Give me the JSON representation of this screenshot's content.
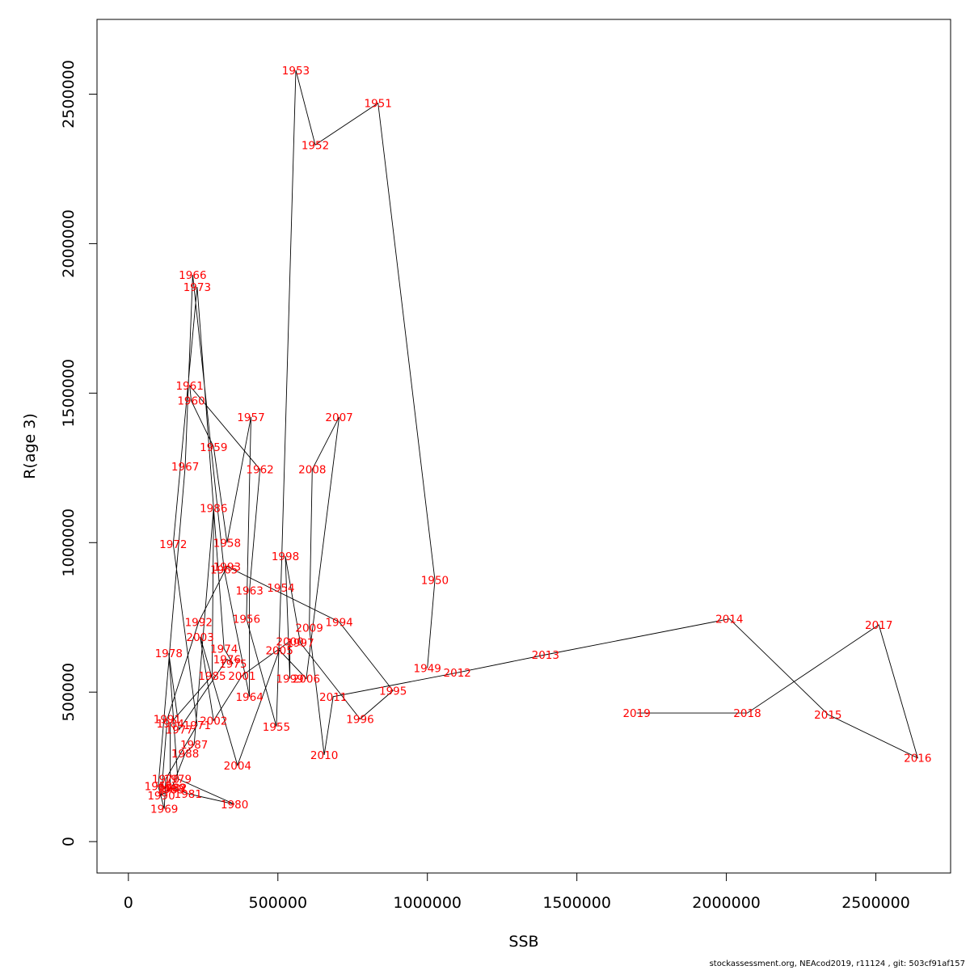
{
  "chart_data": {
    "type": "line",
    "title": "",
    "xlabel": "SSB",
    "ylabel": "R(age 3)",
    "xlim": [
      -105000,
      2750000
    ],
    "ylim": [
      -105000,
      2750000
    ],
    "x_ticks": [
      0,
      500000,
      1000000,
      1500000,
      2000000,
      2500000
    ],
    "x_tick_labels": [
      "0",
      "500000",
      "1000000",
      "1500000",
      "2000000",
      "2500000"
    ],
    "y_ticks": [
      0,
      500000,
      1000000,
      1500000,
      2000000,
      2500000
    ],
    "y_tick_labels": [
      "0",
      "500000",
      "1000000",
      "1500000",
      "2000000",
      "2500000"
    ],
    "line_color": "#000000",
    "label_color": "#ff0000",
    "series": [
      {
        "points": [
          {
            "year": "1949",
            "ssb": 1000000,
            "r": 580000
          },
          {
            "year": "1950",
            "ssb": 1025000,
            "r": 875000
          },
          {
            "year": "1951",
            "ssb": 835000,
            "r": 2470000
          },
          {
            "year": "1952",
            "ssb": 625000,
            "r": 2330000
          },
          {
            "year": "1953",
            "ssb": 560000,
            "r": 2580000
          },
          {
            "year": "1954",
            "ssb": 510000,
            "r": 850000
          },
          {
            "year": "1955",
            "ssb": 495000,
            "r": 385000
          },
          {
            "year": "1956",
            "ssb": 395000,
            "r": 745000
          },
          {
            "year": "1957",
            "ssb": 410000,
            "r": 1420000
          },
          {
            "year": "1958",
            "ssb": 330000,
            "r": 1000000
          },
          {
            "year": "1959",
            "ssb": 285000,
            "r": 1320000
          },
          {
            "year": "1960",
            "ssb": 210000,
            "r": 1475000
          },
          {
            "year": "1961",
            "ssb": 205000,
            "r": 1525000
          },
          {
            "year": "1962",
            "ssb": 440000,
            "r": 1245000
          },
          {
            "year": "1963",
            "ssb": 405000,
            "r": 840000
          },
          {
            "year": "1964",
            "ssb": 405000,
            "r": 485000
          },
          {
            "year": "1965",
            "ssb": 320000,
            "r": 910000
          },
          {
            "year": "1966",
            "ssb": 215000,
            "r": 1895000
          },
          {
            "year": "1967",
            "ssb": 190000,
            "r": 1255000
          },
          {
            "year": "1968",
            "ssb": 100000,
            "r": 185000
          },
          {
            "year": "1969",
            "ssb": 120000,
            "r": 110000
          },
          {
            "year": "1970",
            "ssb": 125000,
            "r": 210000
          },
          {
            "year": "1971",
            "ssb": 230000,
            "r": 390000
          },
          {
            "year": "1972",
            "ssb": 150000,
            "r": 995000
          },
          {
            "year": "1973",
            "ssb": 230000,
            "r": 1855000
          },
          {
            "year": "1974",
            "ssb": 320000,
            "r": 645000
          },
          {
            "year": "1975",
            "ssb": 350000,
            "r": 595000
          },
          {
            "year": "1976",
            "ssb": 330000,
            "r": 610000
          },
          {
            "year": "1977",
            "ssb": 170000,
            "r": 375000
          },
          {
            "year": "1978",
            "ssb": 135000,
            "r": 630000
          },
          {
            "year": "1979",
            "ssb": 165000,
            "r": 210000
          },
          {
            "year": "1980",
            "ssb": 355000,
            "r": 125000
          },
          {
            "year": "1981",
            "ssb": 200000,
            "r": 160000
          },
          {
            "year": "1982",
            "ssb": 150000,
            "r": 180000
          },
          {
            "year": "1983",
            "ssb": 140000,
            "r": 175000
          },
          {
            "year": "1984",
            "ssb": 140000,
            "r": 395000
          },
          {
            "year": "1985",
            "ssb": 280000,
            "r": 555000
          },
          {
            "year": "1986",
            "ssb": 285000,
            "r": 1115000
          },
          {
            "year": "1987",
            "ssb": 220000,
            "r": 325000
          },
          {
            "year": "1988",
            "ssb": 190000,
            "r": 295000
          },
          {
            "year": "1989",
            "ssb": 145000,
            "r": 180000
          },
          {
            "year": "1990",
            "ssb": 110000,
            "r": 155000
          },
          {
            "year": "1991",
            "ssb": 130000,
            "r": 410000
          },
          {
            "year": "1992",
            "ssb": 235000,
            "r": 735000
          },
          {
            "year": "1993",
            "ssb": 330000,
            "r": 920000
          },
          {
            "year": "1994",
            "ssb": 705000,
            "r": 735000
          },
          {
            "year": "1995",
            "ssb": 885000,
            "r": 505000
          },
          {
            "year": "1996",
            "ssb": 775000,
            "r": 410000
          },
          {
            "year": "1997",
            "ssb": 575000,
            "r": 665000
          },
          {
            "year": "1998",
            "ssb": 525000,
            "r": 955000
          },
          {
            "year": "1999",
            "ssb": 540000,
            "r": 545000
          },
          {
            "year": "2000",
            "ssb": 540000,
            "r": 670000
          },
          {
            "year": "2001",
            "ssb": 380000,
            "r": 555000
          },
          {
            "year": "2002",
            "ssb": 285000,
            "r": 405000
          },
          {
            "year": "2003",
            "ssb": 240000,
            "r": 685000
          },
          {
            "year": "2004",
            "ssb": 365000,
            "r": 255000
          },
          {
            "year": "2005",
            "ssb": 505000,
            "r": 640000
          },
          {
            "year": "2006",
            "ssb": 595000,
            "r": 545000
          },
          {
            "year": "2007",
            "ssb": 705000,
            "r": 1420000
          },
          {
            "year": "2008",
            "ssb": 615000,
            "r": 1245000
          },
          {
            "year": "2009",
            "ssb": 605000,
            "r": 715000
          },
          {
            "year": "2010",
            "ssb": 655000,
            "r": 290000
          },
          {
            "year": "2011",
            "ssb": 685000,
            "r": 485000
          },
          {
            "year": "2012",
            "ssb": 1100000,
            "r": 565000
          },
          {
            "year": "2013",
            "ssb": 1395000,
            "r": 625000
          },
          {
            "year": "2014",
            "ssb": 2010000,
            "r": 745000
          },
          {
            "year": "2015",
            "ssb": 2340000,
            "r": 425000
          },
          {
            "year": "2016",
            "ssb": 2640000,
            "r": 280000
          },
          {
            "year": "2017",
            "ssb": 2510000,
            "r": 725000
          },
          {
            "year": "2018",
            "ssb": 2070000,
            "r": 430000
          },
          {
            "year": "2019",
            "ssb": 1700000,
            "r": 430000
          }
        ]
      }
    ]
  },
  "footer": {
    "note": "stockassessment.org, NEAcod2019, r11124 , git: 503cf91af157"
  }
}
